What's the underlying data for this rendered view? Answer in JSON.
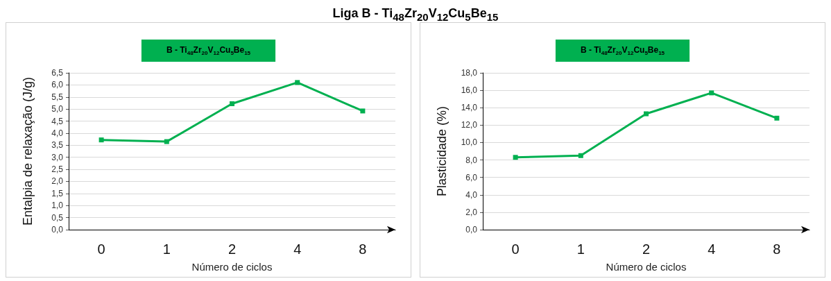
{
  "chart_data": [
    {
      "type": "line",
      "title": "B - Ti$_{48}$Zr$_{20}$V$_{12}$Cu$_{5}$Be$_{15}$",
      "annotations": [
        "Liga B - Ti$_{48}$Zr$_{20}$V$_{12}$Cu$_{5}$Be$_{15}$"
      ],
      "xlabel": "Número de ciclos",
      "ylabel": "Entalpia de relaxação (J/g)",
      "categories": [
        "0",
        "1",
        "2",
        "4",
        "8"
      ],
      "series": [
        {
          "color": "#00b050",
          "values": [
            3.72,
            3.65,
            5.22,
            6.1,
            4.92
          ]
        }
      ],
      "ylim": [
        0,
        6.5
      ],
      "yticks": [
        {
          "value": 0,
          "label": "0,0"
        },
        {
          "value": 0.5,
          "label": "0,5"
        },
        {
          "value": 1,
          "label": "1,0"
        },
        {
          "value": 1.5,
          "label": "1,5"
        },
        {
          "value": 2,
          "label": "2,0"
        },
        {
          "value": 2.5,
          "label": "2,5"
        },
        {
          "value": 3,
          "label": "3,0"
        },
        {
          "value": 3.5,
          "label": "3,5"
        },
        {
          "value": 4,
          "label": "4,0"
        },
        {
          "value": 4.5,
          "label": "4,5"
        },
        {
          "value": 5,
          "label": "5,0"
        },
        {
          "value": 5.5,
          "label": "5,5"
        },
        {
          "value": 6,
          "label": "6,0"
        },
        {
          "value": 6.5,
          "label": "6,5"
        }
      ],
      "grid": "y",
      "marker": "square",
      "line_style": "solid"
    },
    {
      "type": "line",
      "title": "B - Ti$_{48}$Zr$_{20}$V$_{12}$Cu$_{5}$Be$_{15}$",
      "xlabel": "Número de ciclos",
      "ylabel": "Plasticidade (%)",
      "categories": [
        "0",
        "1",
        "2",
        "4",
        "8"
      ],
      "series": [
        {
          "color": "#00b050",
          "values": [
            8.3,
            8.5,
            13.3,
            15.7,
            12.8
          ]
        }
      ],
      "ylim": [
        0,
        18
      ],
      "yticks": [
        {
          "value": 0,
          "label": "0,0"
        },
        {
          "value": 2,
          "label": "2,0"
        },
        {
          "value": 4,
          "label": "4,0"
        },
        {
          "value": 6,
          "label": "6,0"
        },
        {
          "value": 8,
          "label": "8,0"
        },
        {
          "value": 10,
          "label": "10,0"
        },
        {
          "value": 12,
          "label": "12,0"
        },
        {
          "value": 14,
          "label": "14,0"
        },
        {
          "value": 16,
          "label": "16,0"
        },
        {
          "value": 18,
          "label": "18,0"
        }
      ],
      "grid": "y",
      "marker": "square",
      "line_style": "solid"
    }
  ]
}
